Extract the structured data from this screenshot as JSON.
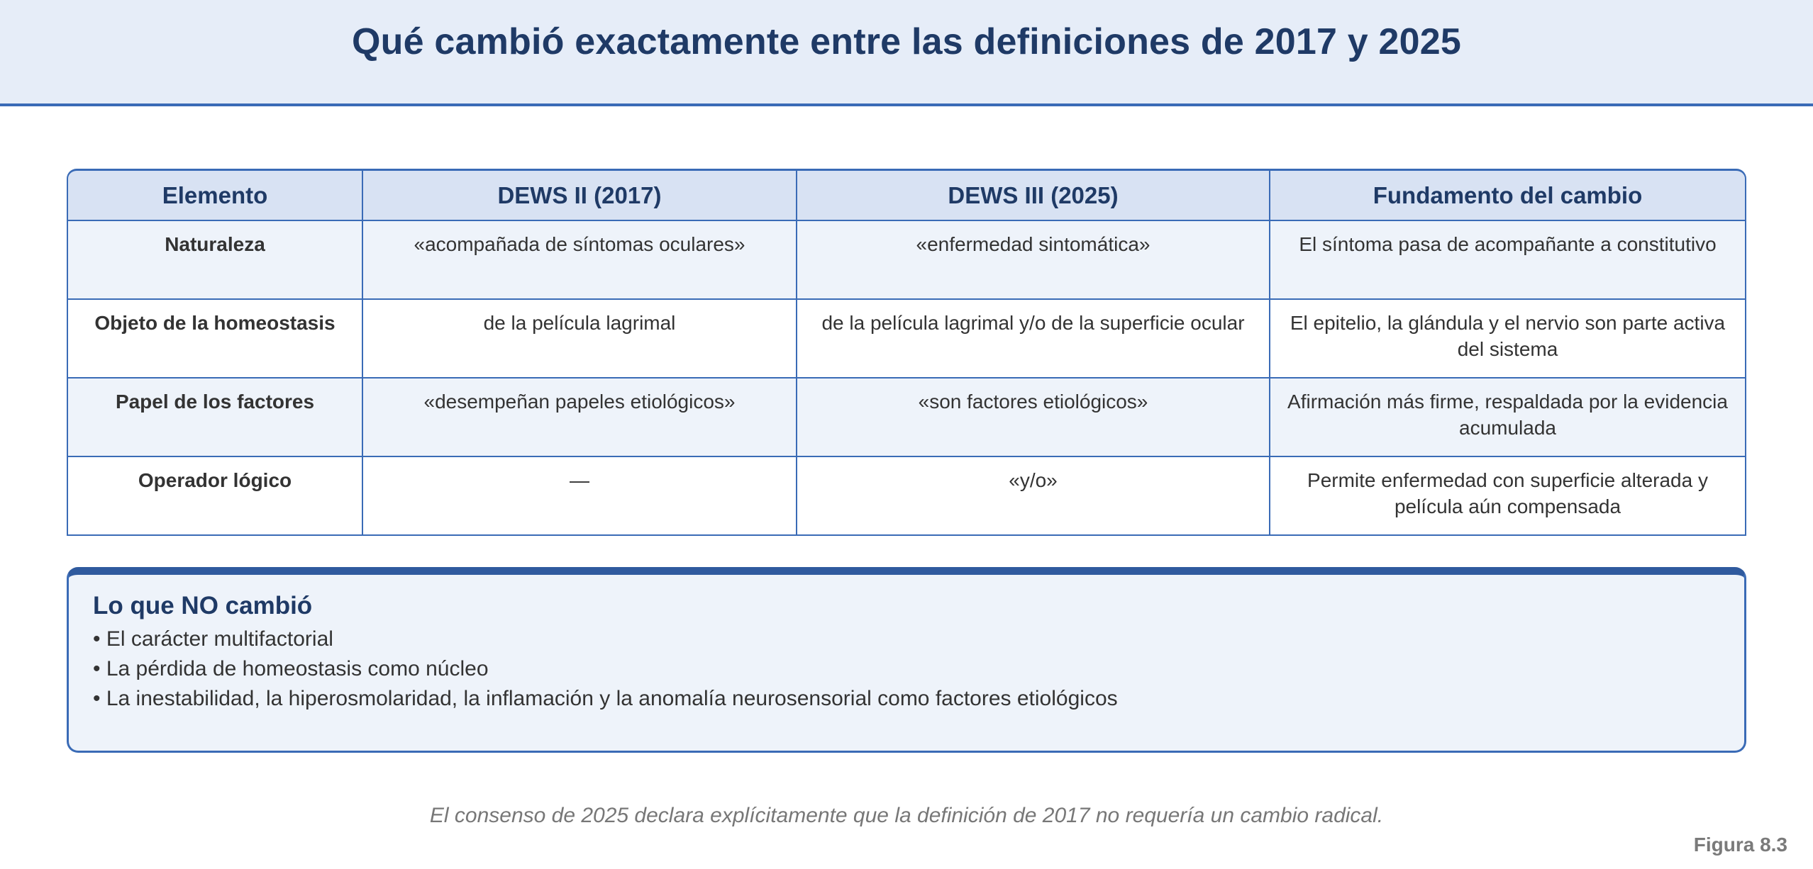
{
  "title": "Qué cambió exactamente entre las definiciones de 2017 y 2025",
  "table": {
    "headers": [
      "Elemento",
      "DEWS II (2017)",
      "DEWS III (2025)",
      "Fundamento del cambio"
    ],
    "rows": [
      {
        "element": "Naturaleza",
        "dews2017": "«acompañada de síntomas oculares»",
        "dews2025": "«enfermedad sintomática»",
        "rationale": "El síntoma pasa de acompañante a constitutivo"
      },
      {
        "element": "Objeto de la homeostasis",
        "dews2017": "de la película lagrimal",
        "dews2025": "de la película lagrimal y/o de la superficie ocular",
        "rationale": "El epitelio, la glándula y el nervio son parte activa del sistema"
      },
      {
        "element": "Papel de los factores",
        "dews2017": "«desempeñan papeles etiológicos»",
        "dews2025": "«son factores etiológicos»",
        "rationale": "Afirmación más firme, respaldada por la evidencia acumulada"
      },
      {
        "element": "Operador lógico",
        "dews2017": "—",
        "dews2025": "«y/o»",
        "rationale": "Permite enfermedad con superficie alterada y película aún compensada"
      }
    ]
  },
  "unchanged": {
    "title": "Lo que NO cambió",
    "items": [
      "• El carácter multifactorial",
      "• La pérdida de homeostasis como núcleo",
      "• La inestabilidad, la hiperosmolaridad, la inflamación y la anomalía neurosensorial como factores etiológicos"
    ]
  },
  "caption": "El consenso de 2025 declara explícitamente que la definición de 2017 no requería un cambio radical.",
  "figure_label": "Figura 8.3"
}
